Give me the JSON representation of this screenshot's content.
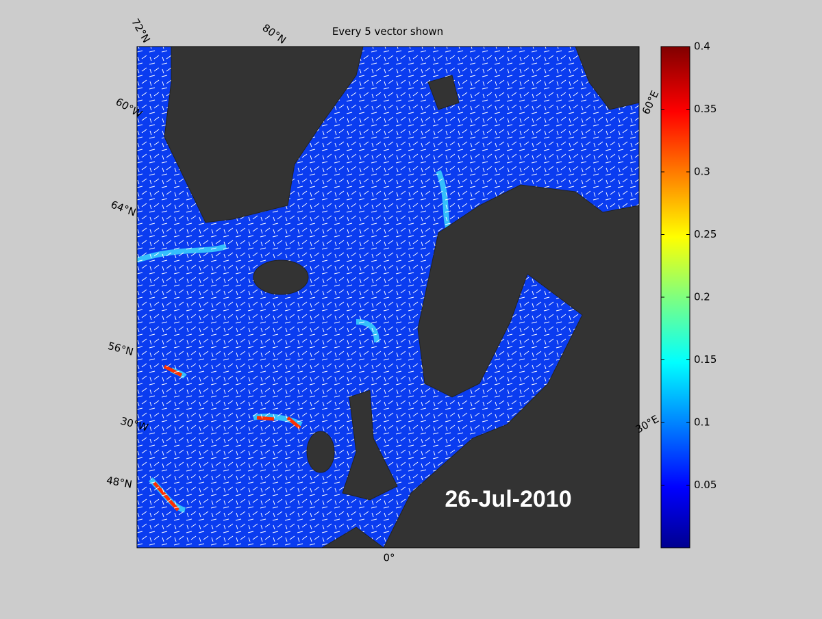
{
  "title": "Every 5 vector shown",
  "graticule_labels": [
    "72°N",
    "80°N",
    "60°W",
    "64°N",
    "56°N",
    "30°W",
    "48°N",
    "0°",
    "30°E",
    "60°E"
  ],
  "date": "26-Jul-2010",
  "colorbar": {
    "lim": [
      0,
      0.4
    ],
    "ticks": [
      0.05,
      0.1,
      0.15,
      0.2,
      0.25,
      0.3,
      0.35,
      0.4
    ]
  }
}
